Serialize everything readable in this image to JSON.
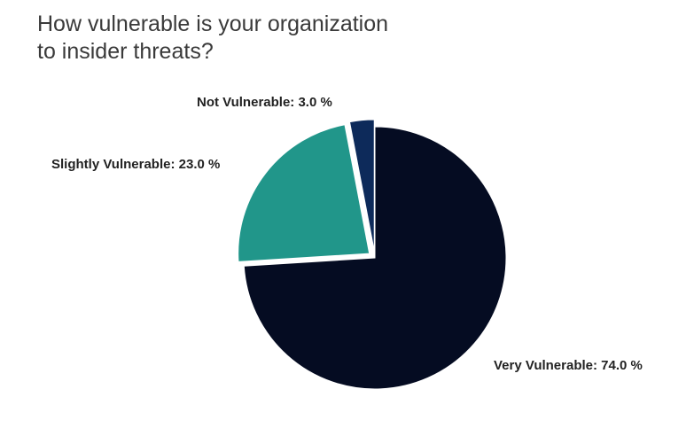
{
  "chart_data": {
    "type": "pie",
    "title_lines": [
      "How vulnerable is your organization",
      "to insider threats?"
    ],
    "slices": [
      {
        "label": "Very Vulnerable",
        "value": 74.0,
        "display": "Very Vulnerable: 74.0 %",
        "color": "#050c22"
      },
      {
        "label": "Slightly Vulnerable",
        "value": 23.0,
        "display": "Slightly Vulnerable: 23.0 %",
        "color": "#21968a"
      },
      {
        "label": "Not Vulnerable",
        "value": 3.0,
        "display": "Not Vulnerable: 3.0 %",
        "color": "#0d2a5a"
      }
    ],
    "exploded_slices": [
      "Slightly Vulnerable",
      "Not Vulnerable"
    ],
    "legend": "none"
  }
}
